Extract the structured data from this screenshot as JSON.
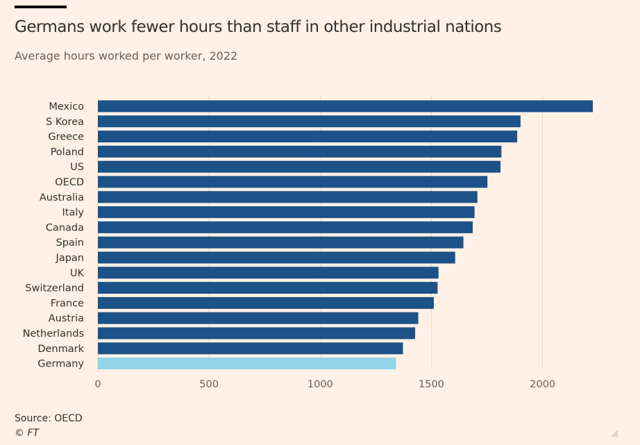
{
  "header": {
    "title": "Germans work fewer hours than staff in other industrial nations",
    "subtitle": "Average hours worked per worker, 2022"
  },
  "footer": {
    "source": "Source: OECD",
    "copyright": "© FT"
  },
  "chart_data": {
    "type": "bar",
    "orientation": "horizontal",
    "title": "Germans work fewer hours than staff in other industrial nations",
    "subtitle": "Average hours worked per worker, 2022",
    "categories": [
      "Mexico",
      "S Korea",
      "Greece",
      "Poland",
      "US",
      "OECD",
      "Australia",
      "Italy",
      "Canada",
      "Spain",
      "Japan",
      "UK",
      "Switzerland",
      "France",
      "Austria",
      "Netherlands",
      "Denmark",
      "Germany"
    ],
    "values": [
      2226,
      1901,
      1886,
      1815,
      1811,
      1752,
      1707,
      1694,
      1686,
      1644,
      1607,
      1532,
      1528,
      1511,
      1441,
      1427,
      1372,
      1341
    ],
    "highlight": "Germany",
    "colors": {
      "bar": "#1d5288",
      "highlight": "#93d4e9",
      "grid": "#e6d9ce",
      "background": "#fff1e5"
    },
    "xticks": [
      0,
      500,
      1000,
      1500,
      2000
    ],
    "xlim": [
      0,
      2226
    ],
    "grid": true,
    "xlabel": "",
    "ylabel": ""
  }
}
